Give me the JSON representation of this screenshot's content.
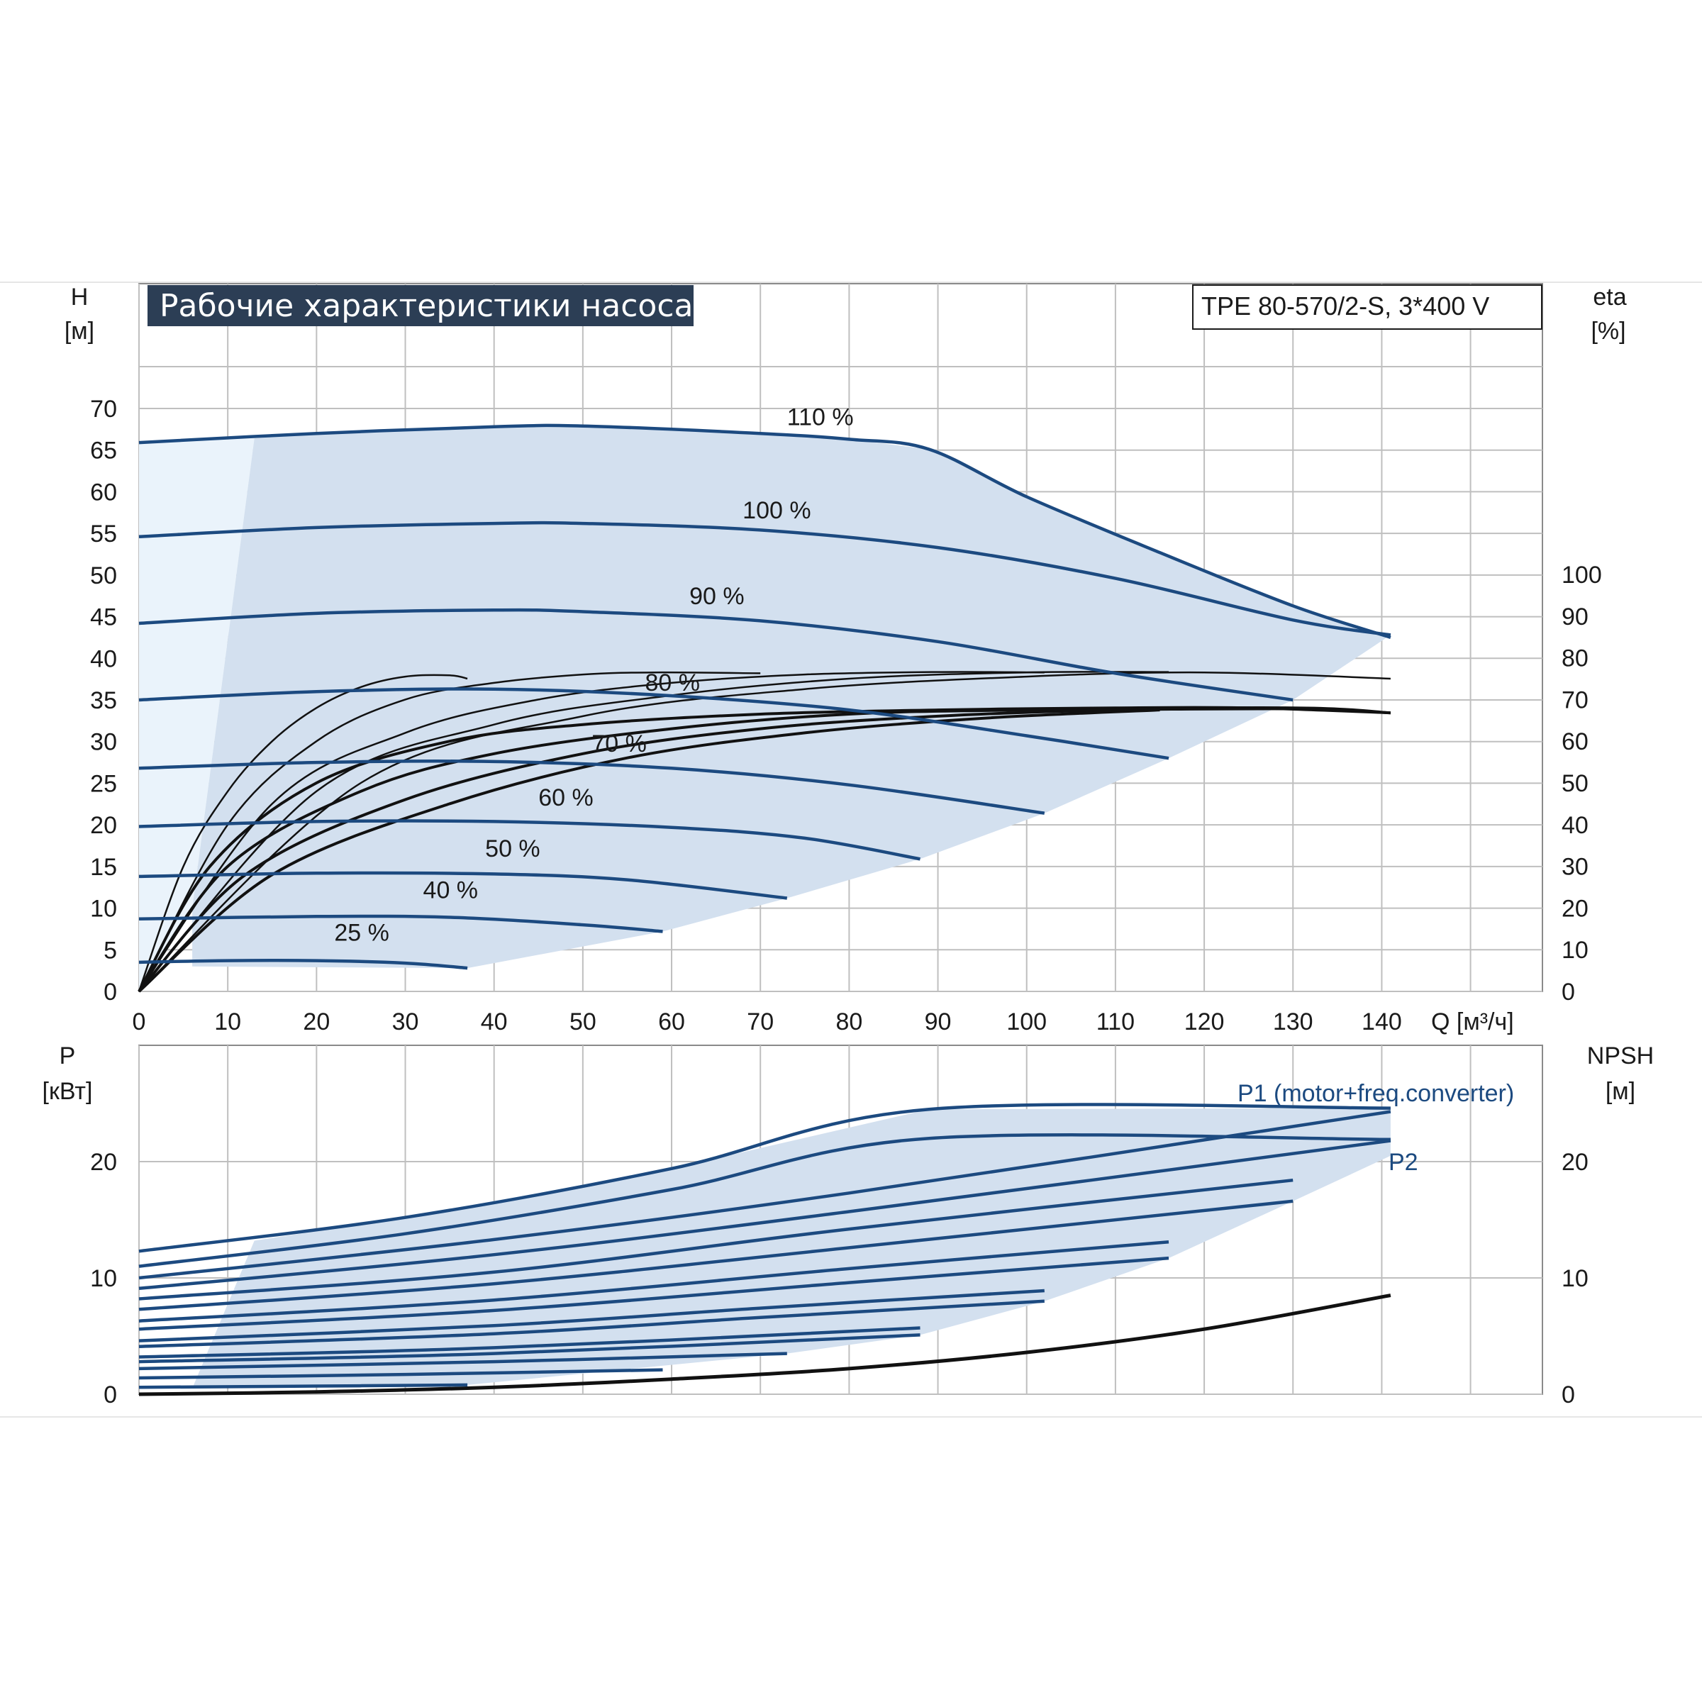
{
  "title": "Рабочие характеристики насоса",
  "model": "TPE 80-570/2-S, 3*400 V",
  "colors": {
    "curve": "#1c4a80",
    "fill": "#d3e0ef",
    "fill_light": "#eaf3fb",
    "grid": "#bfbfbf",
    "eta": "#111111",
    "title_bg": "#2c3e55"
  },
  "chart_data": [
    {
      "type": "line",
      "name_id": "head",
      "ylabel_top": "H",
      "ylabel_unit": "[м]",
      "y2label_top": "eta",
      "y2label_unit": "[%]",
      "xlabel": "Q [м³/ч]",
      "xlim": [
        0,
        155
      ],
      "ylim": [
        0,
        70
      ],
      "y2lim": [
        0,
        100
      ],
      "xticks": [
        0,
        10,
        20,
        30,
        40,
        50,
        60,
        70,
        80,
        90,
        100,
        110,
        120,
        130,
        140
      ],
      "yticks": [
        0,
        5,
        10,
        15,
        20,
        25,
        30,
        35,
        40,
        45,
        50,
        55,
        60,
        65,
        70
      ],
      "y2ticks": [
        0,
        10,
        20,
        30,
        40,
        50,
        60,
        70,
        80,
        90,
        100
      ],
      "grid": true,
      "speed_curves": [
        {
          "label": "110 %",
          "label_at": [
            73,
            68
          ],
          "points": [
            [
              0,
              65.9
            ],
            [
              20,
              67.0
            ],
            [
              40,
              67.8
            ],
            [
              50,
              67.9
            ],
            [
              70,
              67.0
            ],
            [
              80,
              66.3
            ],
            [
              89,
              65.1
            ],
            [
              100,
              59.4
            ],
            [
              115,
              52.7
            ],
            [
              130,
              46.3
            ],
            [
              141,
              42.5
            ]
          ]
        },
        {
          "label": "100 %",
          "label_at": [
            68,
            56.8
          ],
          "points": [
            [
              0,
              54.6
            ],
            [
              20,
              55.7
            ],
            [
              40,
              56.2
            ],
            [
              50,
              56.2
            ],
            [
              70,
              55.4
            ],
            [
              90,
              53.3
            ],
            [
              110,
              49.6
            ],
            [
              130,
              44.6
            ],
            [
              141,
              42.8
            ]
          ]
        },
        {
          "label": "90 %",
          "label_at": [
            62,
            46.5
          ],
          "points": [
            [
              0,
              44.2
            ],
            [
              20,
              45.4
            ],
            [
              40,
              45.8
            ],
            [
              50,
              45.6
            ],
            [
              70,
              44.5
            ],
            [
              90,
              42.0
            ],
            [
              110,
              38.2
            ],
            [
              130,
              35.0
            ]
          ]
        },
        {
          "label": "80 %",
          "label_at": [
            57,
            36.1
          ],
          "points": [
            [
              0,
              35.0
            ],
            [
              20,
              36.0
            ],
            [
              40,
              36.3
            ],
            [
              60,
              35.5
            ],
            [
              80,
              33.8
            ],
            [
              100,
              30.7
            ],
            [
              116,
              28.0
            ]
          ]
        },
        {
          "label": "70 %",
          "label_at": [
            51,
            28.8
          ],
          "points": [
            [
              0,
              26.8
            ],
            [
              20,
              27.5
            ],
            [
              40,
              27.6
            ],
            [
              60,
              26.8
            ],
            [
              80,
              24.8
            ],
            [
              102,
              21.4
            ]
          ]
        },
        {
          "label": "60 %",
          "label_at": [
            45,
            22.3
          ],
          "points": [
            [
              0,
              19.8
            ],
            [
              20,
              20.4
            ],
            [
              40,
              20.4
            ],
            [
              60,
              19.7
            ],
            [
              75,
              18.4
            ],
            [
              88,
              15.9
            ]
          ]
        },
        {
          "label": "50 %",
          "label_at": [
            39,
            16.2
          ],
          "points": [
            [
              0,
              13.8
            ],
            [
              20,
              14.2
            ],
            [
              40,
              14.1
            ],
            [
              55,
              13.4
            ],
            [
              73,
              11.2
            ]
          ]
        },
        {
          "label": "40 %",
          "label_at": [
            32,
            11.2
          ],
          "points": [
            [
              0,
              8.7
            ],
            [
              20,
              9.0
            ],
            [
              35,
              8.9
            ],
            [
              50,
              8.0
            ],
            [
              59,
              7.2
            ]
          ]
        },
        {
          "label": "25 %",
          "label_at": [
            22,
            6.1
          ],
          "points": [
            [
              0,
              3.5
            ],
            [
              10,
              3.7
            ],
            [
              20,
              3.7
            ],
            [
              30,
              3.4
            ],
            [
              37,
              2.8
            ]
          ]
        }
      ],
      "efficiency_curves": [
        {
          "name": "eta-1",
          "points": [
            [
              0,
              0
            ],
            [
              5,
              30
            ],
            [
              10,
              48
            ],
            [
              15,
              60
            ],
            [
              20,
              68
            ],
            [
              25,
              73
            ],
            [
              30,
              75.5
            ],
            [
              35,
              75.8
            ],
            [
              37,
              75
            ]
          ]
        },
        {
          "name": "eta-2",
          "points": [
            [
              0,
              0
            ],
            [
              10,
              40
            ],
            [
              20,
              60
            ],
            [
              30,
              70
            ],
            [
              40,
              74
            ],
            [
              50,
              76
            ],
            [
              58,
              76.5
            ],
            [
              70,
              76.3
            ]
          ]
        },
        {
          "name": "eta-3",
          "points": [
            [
              0,
              0
            ],
            [
              15,
              45
            ],
            [
              30,
              62
            ],
            [
              45,
              70
            ],
            [
              60,
              74
            ],
            [
              75,
              76
            ],
            [
              90,
              76.6
            ],
            [
              102,
              76.5
            ]
          ]
        },
        {
          "name": "eta-4",
          "points": [
            [
              0,
              0
            ],
            [
              20,
              48
            ],
            [
              40,
              64
            ],
            [
              60,
              71
            ],
            [
              80,
              75
            ],
            [
              100,
              76.5
            ],
            [
              116,
              76.6
            ]
          ]
        },
        {
          "name": "eta-5",
          "points": [
            [
              0,
              0
            ],
            [
              25,
              50
            ],
            [
              50,
              66
            ],
            [
              75,
              72.5
            ],
            [
              100,
              75.5
            ],
            [
              120,
              76.5
            ],
            [
              141,
              75
            ]
          ]
        },
        {
          "name": "eta-6",
          "points": [
            [
              0,
              0
            ],
            [
              8,
              30
            ],
            [
              20,
              50
            ],
            [
              35,
              60
            ],
            [
              50,
              64
            ],
            [
              70,
              66.5
            ],
            [
              90,
              67.5
            ],
            [
              110,
              68
            ],
            [
              125,
              68
            ],
            [
              141,
              66.8
            ]
          ]
        },
        {
          "name": "eta-7",
          "points": [
            [
              0,
              0
            ],
            [
              10,
              30
            ],
            [
              25,
              48
            ],
            [
              40,
              57
            ],
            [
              60,
              63
            ],
            [
              80,
              66.5
            ],
            [
              100,
              67.5
            ],
            [
              130,
              68
            ],
            [
              141,
              66.8
            ]
          ]
        },
        {
          "name": "eta-8",
          "points": [
            [
              0,
              0
            ],
            [
              12,
              28
            ],
            [
              30,
              46
            ],
            [
              50,
              57
            ],
            [
              70,
              63
            ],
            [
              90,
              66
            ],
            [
              110,
              67.5
            ],
            [
              130,
              67.8
            ]
          ]
        },
        {
          "name": "eta-9",
          "points": [
            [
              0,
              0
            ],
            [
              15,
              28
            ],
            [
              35,
              45
            ],
            [
              55,
              56
            ],
            [
              75,
              62
            ],
            [
              95,
              65.5
            ],
            [
              115,
              67.5
            ]
          ]
        }
      ]
    },
    {
      "type": "line",
      "name_id": "power",
      "ylabel_top": "P",
      "ylabel_unit": "[кВт]",
      "y2label_top": "NPSH",
      "y2label_unit": "[м]",
      "xlim": [
        0,
        155
      ],
      "ylim": [
        0,
        25
      ],
      "y2lim": [
        0,
        25
      ],
      "yticks": [
        0,
        10,
        20
      ],
      "y2ticks": [
        0,
        10,
        20
      ],
      "grid": true,
      "series_labels": [
        {
          "label": "P1 (motor+freq.converter)",
          "label_at": [
            116,
            25.5
          ]
        },
        {
          "label": "P2",
          "label_at": [
            139,
            19.5
          ]
        }
      ],
      "power_curves": [
        {
          "name": "p1-110",
          "points": [
            [
              0,
              12.3
            ],
            [
              30,
              15.2
            ],
            [
              60,
              19.4
            ],
            [
              89,
              24.5
            ],
            [
              141,
              24.6
            ]
          ]
        },
        {
          "name": "p2-110",
          "points": [
            [
              0,
              11.0
            ],
            [
              30,
              13.8
            ],
            [
              60,
              17.6
            ],
            [
              89,
              22.0
            ],
            [
              141,
              21.9
            ]
          ]
        },
        {
          "name": "p1-100",
          "points": [
            [
              0,
              10.0
            ],
            [
              40,
              13.3
            ],
            [
              80,
              17.3
            ],
            [
              141,
              24.3
            ]
          ]
        },
        {
          "name": "p2-100",
          "points": [
            [
              0,
              9.1
            ],
            [
              40,
              12.0
            ],
            [
              80,
              15.7
            ],
            [
              141,
              21.8
            ]
          ]
        },
        {
          "name": "p1-90",
          "points": [
            [
              0,
              8.2
            ],
            [
              40,
              10.5
            ],
            [
              80,
              14.2
            ],
            [
              130,
              18.4
            ]
          ]
        },
        {
          "name": "p2-90",
          "points": [
            [
              0,
              7.3
            ],
            [
              40,
              9.5
            ],
            [
              80,
              12.6
            ],
            [
              130,
              16.6
            ]
          ]
        },
        {
          "name": "p1-80",
          "points": [
            [
              0,
              6.3
            ],
            [
              40,
              8.1
            ],
            [
              80,
              10.8
            ],
            [
              116,
              13.1
            ]
          ]
        },
        {
          "name": "p2-80",
          "points": [
            [
              0,
              5.6
            ],
            [
              40,
              7.2
            ],
            [
              80,
              9.6
            ],
            [
              116,
              11.7
            ]
          ]
        },
        {
          "name": "p1-70",
          "points": [
            [
              0,
              4.6
            ],
            [
              40,
              5.9
            ],
            [
              70,
              7.4
            ],
            [
              102,
              8.9
            ]
          ]
        },
        {
          "name": "p2-70",
          "points": [
            [
              0,
              4.1
            ],
            [
              40,
              5.2
            ],
            [
              70,
              6.6
            ],
            [
              102,
              8.0
            ]
          ]
        },
        {
          "name": "p1-60",
          "points": [
            [
              0,
              3.2
            ],
            [
              40,
              4.0
            ],
            [
              88,
              5.7
            ]
          ]
        },
        {
          "name": "p2-60",
          "points": [
            [
              0,
              2.8
            ],
            [
              40,
              3.5
            ],
            [
              88,
              5.1
            ]
          ]
        },
        {
          "name": "p1-50",
          "points": [
            [
              0,
              2.2
            ],
            [
              40,
              2.8
            ],
            [
              73,
              3.5
            ]
          ]
        },
        {
          "name": "p1-40",
          "points": [
            [
              0,
              1.4
            ],
            [
              30,
              1.7
            ],
            [
              59,
              2.1
            ]
          ]
        },
        {
          "name": "p1-25",
          "points": [
            [
              0,
              0.6
            ],
            [
              20,
              0.7
            ],
            [
              37,
              0.8
            ]
          ]
        }
      ],
      "npsh_curve": {
        "name": "npsh",
        "points": [
          [
            0,
            0
          ],
          [
            20,
            0.2
          ],
          [
            40,
            0.6
          ],
          [
            60,
            1.3
          ],
          [
            80,
            2.2
          ],
          [
            100,
            3.6
          ],
          [
            120,
            5.6
          ],
          [
            141,
            8.5
          ]
        ]
      }
    }
  ]
}
